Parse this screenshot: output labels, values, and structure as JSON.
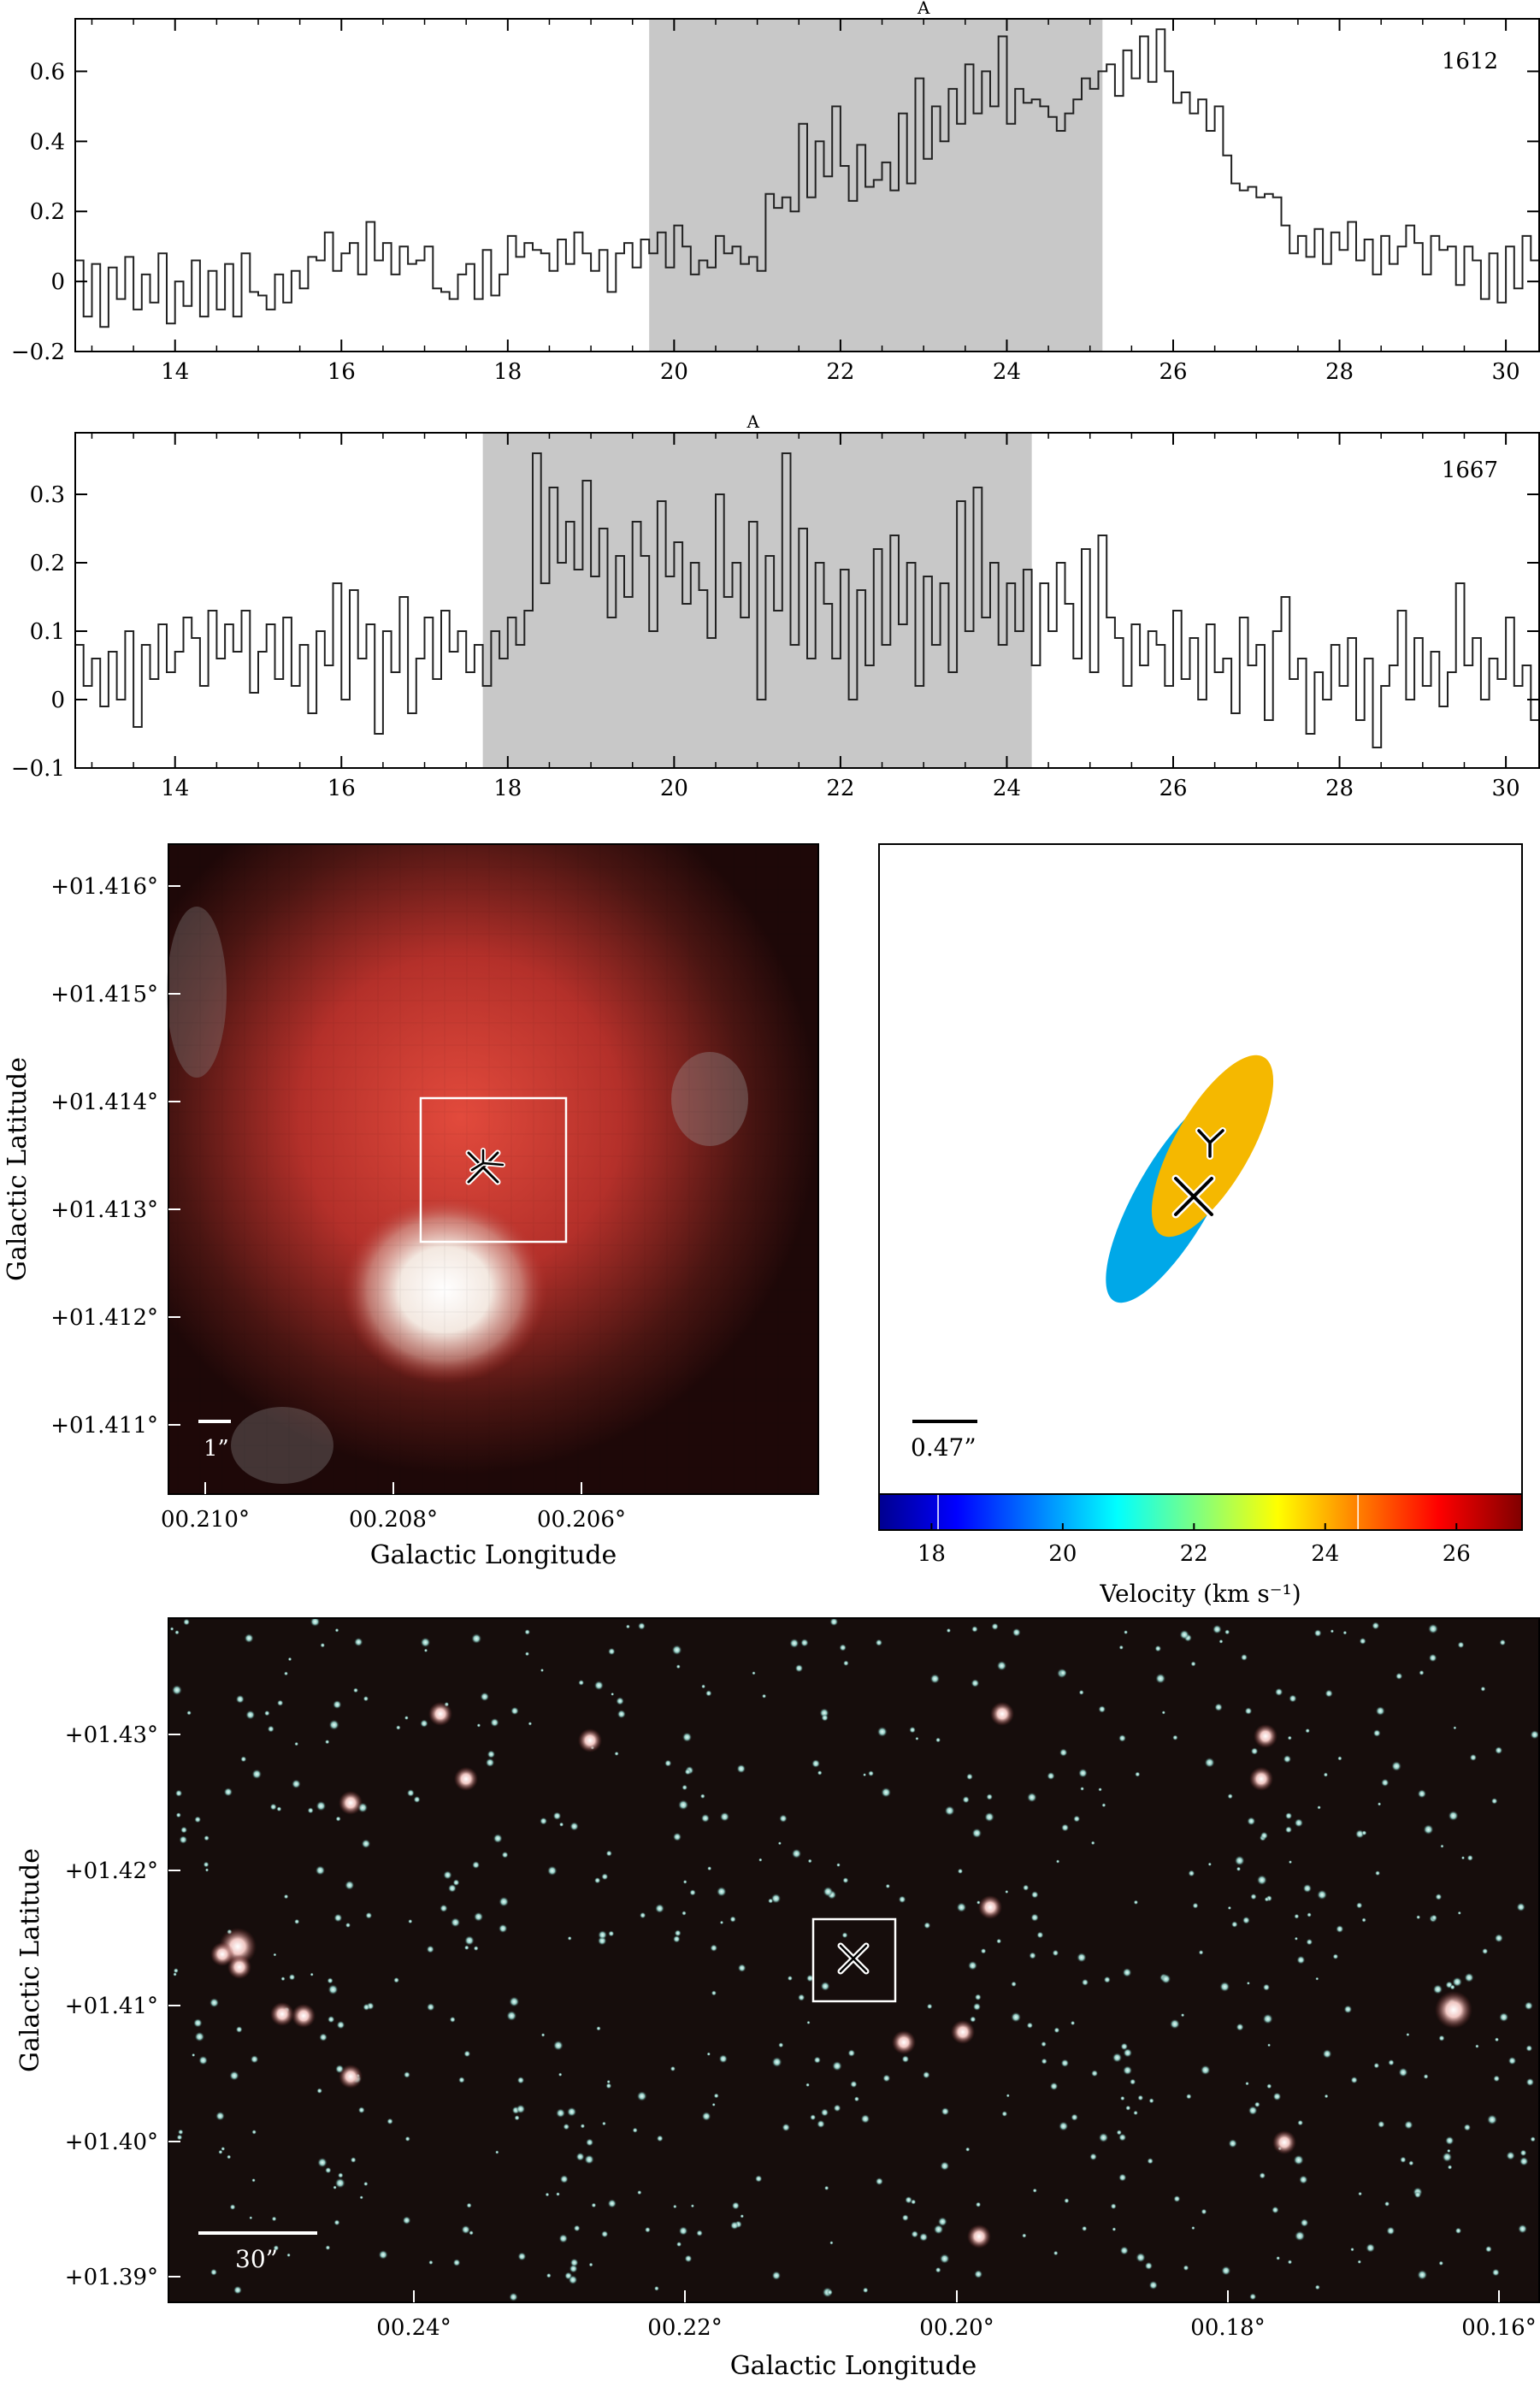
{
  "colors": {
    "band": "#c8c8c8",
    "ellipse_1612": "#f5b800",
    "ellipse_1667": "#00a8e8",
    "frame": "#000000"
  },
  "chart_data": [
    {
      "type": "line",
      "label": "1612",
      "peak_marker": "A",
      "xlim": [
        12.8,
        30.4
      ],
      "ylim": [
        -0.2,
        0.75
      ],
      "xticks": [
        "14",
        "16",
        "18",
        "20",
        "22",
        "24",
        "26",
        "28",
        "30"
      ],
      "yticks": [
        "−0.2",
        "0",
        "0.2",
        "0.4",
        "0.6"
      ],
      "shaded_range": [
        19.7,
        25.15
      ],
      "peak_marker_x": 23.0,
      "grid": false,
      "series": [
        {
          "x0": 12.8,
          "dx": 0.1,
          "y": [
            0.06,
            -0.1,
            0.05,
            -0.13,
            0.04,
            -0.05,
            0.07,
            -0.08,
            0.02,
            -0.06,
            0.08,
            -0.12,
            0.0,
            -0.07,
            0.06,
            -0.1,
            0.03,
            -0.08,
            0.05,
            -0.1,
            0.08,
            -0.03,
            -0.04,
            -0.08,
            0.02,
            -0.06,
            0.03,
            -0.02,
            0.07,
            0.06,
            0.14,
            0.03,
            0.08,
            0.11,
            0.02,
            0.17,
            0.06,
            0.11,
            0.02,
            0.1,
            0.05,
            0.06,
            0.1,
            -0.02,
            -0.03,
            -0.05,
            0.02,
            0.05,
            -0.05,
            0.09,
            -0.04,
            0.02,
            0.13,
            0.07,
            0.11,
            0.09,
            0.08,
            0.03,
            0.12,
            0.05,
            0.14,
            0.08,
            0.03,
            0.09,
            -0.03,
            0.08,
            0.11,
            0.04,
            0.12,
            0.08,
            0.14,
            0.04,
            0.16,
            0.1,
            0.02,
            0.06,
            0.04,
            0.13,
            0.08,
            0.1,
            0.05,
            0.07,
            0.03,
            0.25,
            0.21,
            0.24,
            0.2,
            0.45,
            0.24,
            0.4,
            0.3,
            0.5,
            0.33,
            0.23,
            0.39,
            0.27,
            0.29,
            0.34,
            0.26,
            0.48,
            0.28,
            0.58,
            0.35,
            0.5,
            0.4,
            0.55,
            0.45,
            0.62,
            0.48,
            0.6,
            0.5,
            0.7,
            0.45,
            0.55,
            0.51,
            0.52,
            0.5,
            0.47,
            0.43,
            0.48,
            0.52,
            0.58,
            0.55,
            0.6,
            0.62,
            0.53,
            0.66,
            0.58,
            0.7,
            0.57,
            0.72,
            0.6,
            0.51,
            0.54,
            0.48,
            0.52,
            0.43,
            0.5,
            0.36,
            0.28,
            0.26,
            0.27,
            0.24,
            0.25,
            0.24,
            0.16,
            0.08,
            0.13,
            0.07,
            0.15,
            0.05,
            0.14,
            0.09,
            0.17,
            0.06,
            0.12,
            0.02,
            0.13,
            0.05,
            0.1,
            0.16,
            0.11,
            0.02,
            0.13,
            0.09,
            0.1,
            -0.01,
            0.1,
            0.06,
            -0.05,
            0.08,
            -0.06,
            0.1,
            -0.02,
            0.13,
            0.06,
            0.14,
            0.02,
            0.16,
            0.1,
            0.18,
            0.05,
            0.12,
            0.07,
            0.15,
            -0.03,
            0.11,
            0.08,
            0.23,
            0.12,
            0.19,
            0.05,
            0.2,
            0.11,
            0.26
          ]
        }
      ]
    },
    {
      "type": "line",
      "label": "1667",
      "peak_marker": "A",
      "xlim": [
        12.8,
        30.4
      ],
      "ylim": [
        -0.1,
        0.39
      ],
      "xticks": [
        "14",
        "16",
        "18",
        "20",
        "22",
        "24",
        "26",
        "28",
        "30"
      ],
      "yticks": [
        "−0.1",
        "0",
        "0.1",
        "0.2",
        "0.3"
      ],
      "shaded_range": [
        17.7,
        24.3
      ],
      "peak_marker_x": 20.95,
      "grid": false,
      "series": [
        {
          "x0": 12.8,
          "dx": 0.1,
          "y": [
            0.08,
            0.02,
            0.06,
            -0.01,
            0.07,
            0.0,
            0.1,
            -0.04,
            0.08,
            0.03,
            0.11,
            0.04,
            0.07,
            0.12,
            0.09,
            0.02,
            0.13,
            0.06,
            0.11,
            0.07,
            0.13,
            0.01,
            0.07,
            0.11,
            0.03,
            0.12,
            0.02,
            0.08,
            -0.02,
            0.1,
            0.05,
            0.17,
            0.0,
            0.16,
            0.06,
            0.11,
            -0.05,
            0.1,
            0.04,
            0.15,
            -0.02,
            0.06,
            0.12,
            0.03,
            0.13,
            0.07,
            0.1,
            0.04,
            0.08,
            0.02,
            0.1,
            0.06,
            0.12,
            0.08,
            0.13,
            0.36,
            0.17,
            0.31,
            0.2,
            0.26,
            0.19,
            0.32,
            0.18,
            0.25,
            0.12,
            0.21,
            0.15,
            0.26,
            0.21,
            0.1,
            0.29,
            0.18,
            0.23,
            0.14,
            0.2,
            0.16,
            0.09,
            0.3,
            0.15,
            0.2,
            0.12,
            0.26,
            0.0,
            0.21,
            0.13,
            0.36,
            0.08,
            0.25,
            0.06,
            0.2,
            0.14,
            0.06,
            0.19,
            0.0,
            0.16,
            0.05,
            0.22,
            0.08,
            0.24,
            0.11,
            0.2,
            0.02,
            0.18,
            0.08,
            0.17,
            0.04,
            0.29,
            0.1,
            0.31,
            0.12,
            0.2,
            0.08,
            0.17,
            0.1,
            0.19,
            0.05,
            0.17,
            0.1,
            0.2,
            0.14,
            0.06,
            0.22,
            0.04,
            0.24,
            0.12,
            0.09,
            0.02,
            0.11,
            0.05,
            0.1,
            0.08,
            0.02,
            0.13,
            0.03,
            0.09,
            0.0,
            0.11,
            0.04,
            0.06,
            -0.02,
            0.12,
            0.05,
            0.08,
            -0.03,
            0.1,
            0.15,
            0.03,
            0.06,
            -0.05,
            0.04,
            0.0,
            0.08,
            0.02,
            0.09,
            -0.03,
            0.06,
            -0.07,
            0.02,
            0.05,
            0.13,
            0.0,
            0.09,
            0.02,
            0.07,
            -0.01,
            0.04,
            0.17,
            0.05,
            0.09,
            0.0,
            0.06,
            0.03,
            0.12,
            0.02,
            0.05,
            -0.03,
            0.08,
            0.01,
            0.05,
            0.03,
            0.15,
            0.04,
            0.09,
            0.02,
            0.06,
            0.1,
            0.05,
            0.13,
            0.03,
            0.06,
            -0.02,
            0.04,
            0.0,
            0.07,
            0.14,
            0.08
          ]
        }
      ]
    },
    {
      "type": "image",
      "xlabel": "Galactic Longitude",
      "ylabel": "Galactic Latitude",
      "xticks": [
        "00.210°",
        "00.208°",
        "00.206°"
      ],
      "yticks": [
        "+01.416°",
        "+01.415°",
        "+01.414°",
        "+01.413°",
        "+01.412°",
        "+01.411°"
      ],
      "scale_bar": "1”"
    },
    {
      "type": "scatter",
      "scale_bar": "0.47”",
      "colorbar_label": "Velocity (km s⁻¹)",
      "colorbar_range": [
        17.2,
        27.0
      ],
      "colorbar_ticks": [
        "18",
        "20",
        "22",
        "24",
        "26"
      ],
      "colorbar_marks": [
        18.1,
        24.5
      ],
      "components": [
        {
          "transition": "1612",
          "velocity": 24.0,
          "marker": "Y"
        },
        {
          "transition": "1667",
          "velocity": 20.7,
          "marker": "X"
        }
      ]
    },
    {
      "type": "image",
      "xlabel": "Galactic Longitude",
      "ylabel": "Galactic Latitude",
      "xticks": [
        "00.24°",
        "00.22°",
        "00.20°",
        "00.18°",
        "00.16°"
      ],
      "yticks": [
        "+01.43°",
        "+01.42°",
        "+01.41°",
        "+01.40°",
        "+01.39°"
      ],
      "scale_bar": "30”"
    }
  ]
}
